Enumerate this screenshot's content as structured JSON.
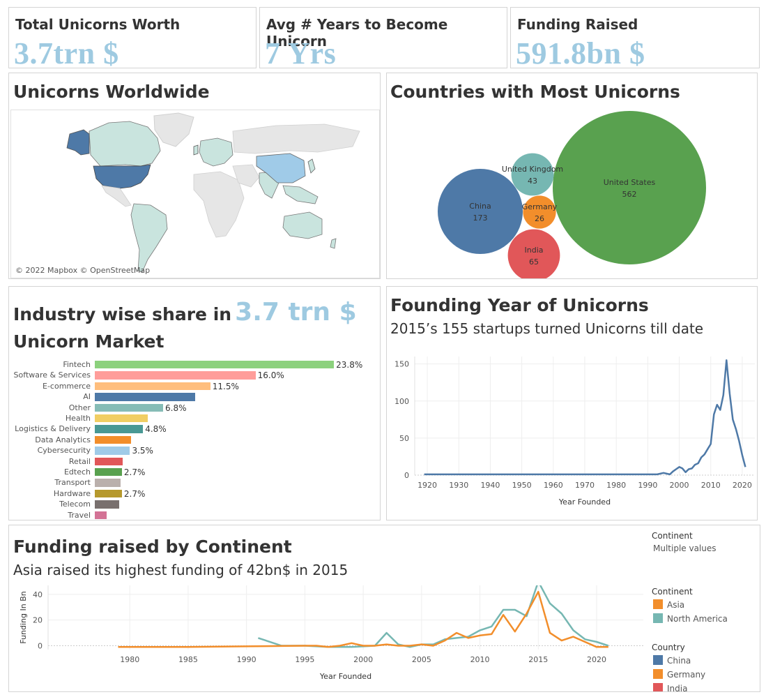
{
  "kpis": [
    {
      "title": "Total Unicorns Worth",
      "value": "3.7trn $"
    },
    {
      "title": "Avg # Years to Become Unicorn",
      "value": "7 Yrs"
    },
    {
      "title": "Funding Raised",
      "value": "591.8bn $"
    }
  ],
  "map": {
    "title": "Unicorns Worldwide",
    "attribution": "© 2022 Mapbox © OpenStreetMap"
  },
  "countries": {
    "title": "Countries with Most Unicorns",
    "chart_data": {
      "type": "bubble",
      "items": [
        {
          "name": "United States",
          "value": "562",
          "color": "#59a14f"
        },
        {
          "name": "China",
          "value": "173",
          "color": "#4e79a7"
        },
        {
          "name": "India",
          "value": "65",
          "color": "#e15759"
        },
        {
          "name": "United Kingdom",
          "value": "43",
          "color": "#76b7b2"
        },
        {
          "name": "Germany",
          "value": "26",
          "color": "#f28e2b"
        }
      ]
    }
  },
  "industry": {
    "title_prefix": "Industry wise share in",
    "title_value": "3.7 trn $",
    "title_suffix": "Unicorn Market",
    "chart_data": {
      "type": "bar",
      "orientation": "horizontal",
      "categories": [
        "Fintech",
        "Software & Services",
        "E-commerce",
        "AI",
        "Other",
        "Health",
        "Logistics & Delivery",
        "Data Analytics",
        "Cybersecurity",
        "Retail",
        "Edtech",
        "Transport",
        "Hardware",
        "Telecom",
        "Travel"
      ],
      "values": [
        23.8,
        16.0,
        11.5,
        10.0,
        6.8,
        5.3,
        4.8,
        3.6,
        3.5,
        2.8,
        2.7,
        2.6,
        2.7,
        2.4,
        1.2
      ],
      "labels": [
        "23.8%",
        "16.0%",
        "11.5%",
        "",
        "6.8%",
        "",
        "4.8%",
        "",
        "3.5%",
        "",
        "2.7%",
        "",
        "2.7%",
        "",
        ""
      ],
      "colors": [
        "#8cd17d",
        "#ff9d9a",
        "#ffbe7d",
        "#4e79a7",
        "#86bcb6",
        "#f1ce63",
        "#499894",
        "#f28e2b",
        "#a0cbe8",
        "#e15759",
        "#59a14f",
        "#bab0ac",
        "#b6992d",
        "#79706e",
        "#d37295"
      ],
      "xlim": [
        0,
        24
      ]
    }
  },
  "founding": {
    "title": "Founding Year of Unicorns",
    "subtitle": "2015’s 155 startups turned Unicorns till date",
    "chart_data": {
      "type": "line",
      "xlabel": "Year Founded",
      "ylabel": "",
      "xlim": [
        1916,
        2024
      ],
      "ylim": [
        0,
        160
      ],
      "xticks": [
        "1920",
        "1930",
        "1940",
        "1950",
        "1960",
        "1970",
        "1980",
        "1990",
        "2000",
        "2010",
        "2020"
      ],
      "yticks": [
        "0",
        "50",
        "100",
        "150"
      ],
      "series": [
        {
          "color": "#4e79a7",
          "x": [
            1919,
            1993,
            1994,
            1995,
            1996,
            1997,
            1998,
            1999,
            2000,
            2001,
            2002,
            2003,
            2004,
            2005,
            2006,
            2007,
            2008,
            2009,
            2010,
            2011,
            2012,
            2013,
            2014,
            2015,
            2016,
            2017,
            2018,
            2019,
            2020,
            2021
          ],
          "y": [
            1,
            1,
            2,
            3,
            2,
            1,
            5,
            8,
            11,
            9,
            4,
            8,
            9,
            14,
            16,
            24,
            28,
            35,
            42,
            82,
            95,
            88,
            108,
            155,
            110,
            75,
            62,
            46,
            27,
            11
          ]
        }
      ]
    }
  },
  "continent": {
    "title": "Funding raised by Continent",
    "subtitle": "Asia raised its highest funding of 42bn$ in 2015",
    "filter_label": "Continent",
    "filter_value": "Multiple values",
    "legend1_title": "Continent",
    "legend1": [
      {
        "name": "Asia",
        "color": "#f28e2b"
      },
      {
        "name": "North America",
        "color": "#76b7b2"
      }
    ],
    "legend2_title": "Country",
    "legend2": [
      {
        "name": "China",
        "color": "#4e79a7"
      },
      {
        "name": "Germany",
        "color": "#f28e2b"
      },
      {
        "name": "India",
        "color": "#e15759"
      }
    ],
    "chart_data": {
      "type": "line",
      "xlabel": "Year Founded",
      "ylabel": "Funding In Bn",
      "xlim": [
        1973,
        2024
      ],
      "ylim": [
        -3,
        47
      ],
      "xticks": [
        "1980",
        "1985",
        "1990",
        "1995",
        "2000",
        "2005",
        "2010",
        "2015",
        "2020"
      ],
      "yticks": [
        "0",
        "20",
        "40"
      ],
      "series": [
        {
          "name": "North America",
          "color": "#76b7b2",
          "x": [
            1991,
            1993,
            1995,
            1997,
            1999,
            2001,
            2002,
            2003,
            2004,
            2005,
            2006,
            2007,
            2008,
            2009,
            2010,
            2011,
            2012,
            2013,
            2014,
            2015,
            2016,
            2017,
            2018,
            2019,
            2020,
            2021
          ],
          "y": [
            6,
            0,
            0,
            -1,
            -1,
            0,
            10,
            1,
            -1,
            1,
            1,
            5,
            6,
            7,
            12,
            15,
            28,
            28,
            23,
            50,
            33,
            25,
            12,
            5,
            3,
            0
          ]
        },
        {
          "name": "Asia",
          "color": "#f28e2b",
          "x": [
            1979,
            1985,
            1990,
            1995,
            1996,
            1997,
            1998,
            1999,
            2000,
            2001,
            2002,
            2003,
            2004,
            2005,
            2006,
            2007,
            2008,
            2009,
            2010,
            2011,
            2012,
            2013,
            2014,
            2015,
            2016,
            2017,
            2018,
            2019,
            2020,
            2021
          ],
          "y": [
            -1,
            -1,
            -0.5,
            0,
            0,
            -1,
            0,
            2,
            0,
            0,
            1,
            0,
            0,
            1,
            0,
            4,
            10,
            6,
            8,
            9,
            24,
            11,
            25,
            42,
            10,
            4,
            7,
            3,
            -1,
            -1
          ]
        }
      ]
    }
  }
}
